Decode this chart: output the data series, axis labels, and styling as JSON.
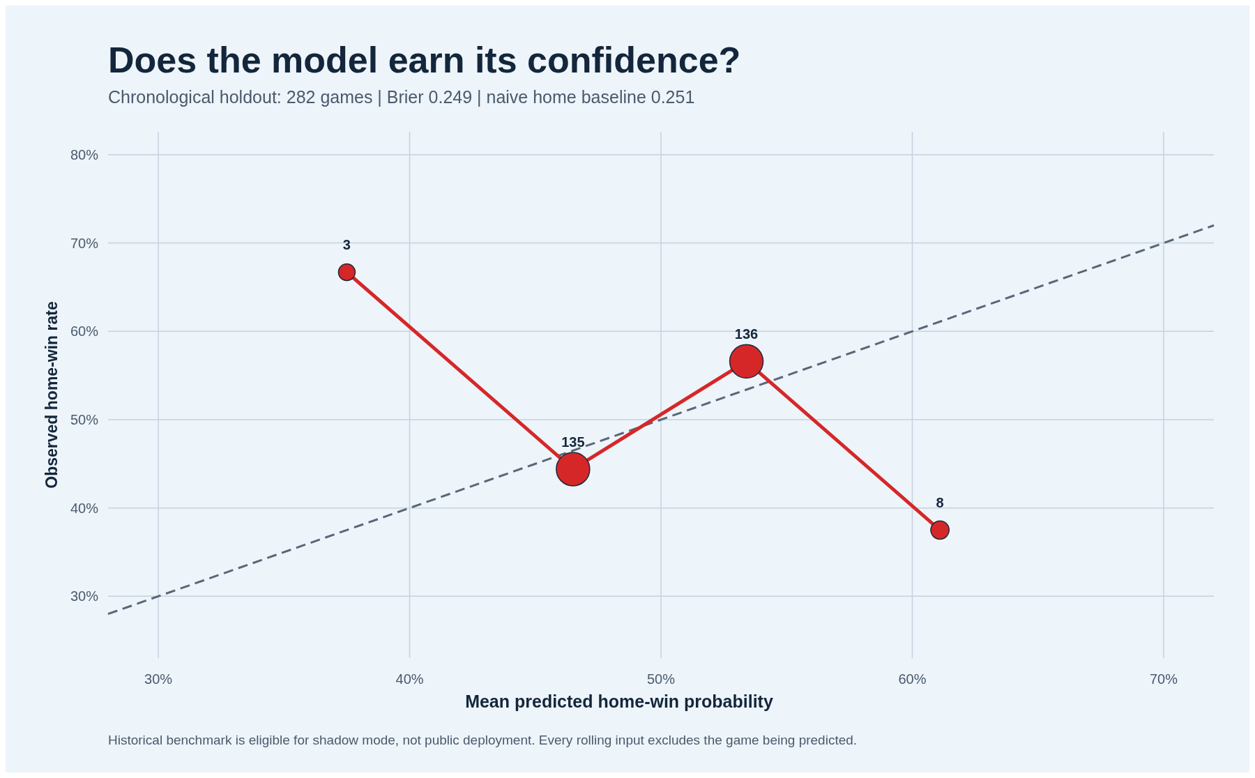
{
  "chart_data": {
    "type": "bubble",
    "title": "Does the model earn its confidence?",
    "subtitle": "Chronological holdout: 282 games | Brier 0.249 | naive home baseline 0.251",
    "xlabel": "Mean predicted home-win probability",
    "ylabel": "Observed home-win rate",
    "annotations": [
      {
        "text": "3",
        "x": 37.5,
        "y": 66.7
      },
      {
        "text": "135",
        "x": 46.5,
        "y": 44.4
      },
      {
        "text": "136",
        "x": 53.4,
        "y": 56.6
      },
      {
        "text": "8",
        "x": 61.1,
        "y": 37.5
      },
      "Historical benchmark is eligible for shadow mode, not public deployment. Every rolling input excludes the game being predicted."
    ],
    "series": [
      {
        "type": "line",
        "color": "#5a6678",
        "line_style": "dashed",
        "marker": "none",
        "x": [
          28,
          72
        ],
        "values": [
          28,
          72
        ]
      },
      {
        "type": "line",
        "color": "#d62728",
        "line_style": "solid",
        "marker": "none",
        "x": [
          37.5,
          46.5,
          53.4,
          61.1
        ],
        "values": [
          66.7,
          44.4,
          56.6,
          37.5
        ]
      },
      {
        "type": "bubble",
        "color": "#d62728",
        "x": [
          37.5,
          46.5,
          53.4,
          61.1
        ],
        "values": [
          66.7,
          44.4,
          56.6,
          37.5
        ],
        "sizes": [
          0.25,
          1,
          1,
          0.3
        ]
      }
    ],
    "xlim": [
      28,
      72
    ],
    "ylim": [
      23,
      82.6
    ],
    "xticks": [
      {
        "value": 30,
        "label": "30%"
      },
      {
        "value": 40,
        "label": "40%"
      },
      {
        "value": 50,
        "label": "50%"
      },
      {
        "value": 60,
        "label": "60%"
      },
      {
        "value": 70,
        "label": "70%"
      }
    ],
    "yticks": [
      {
        "value": 30,
        "label": "30%"
      },
      {
        "value": 40,
        "label": "40%"
      },
      {
        "value": 50,
        "label": "50%"
      },
      {
        "value": 60,
        "label": "60%"
      },
      {
        "value": 70,
        "label": "70%"
      },
      {
        "value": 80,
        "label": "80%"
      }
    ],
    "grid": true
  }
}
